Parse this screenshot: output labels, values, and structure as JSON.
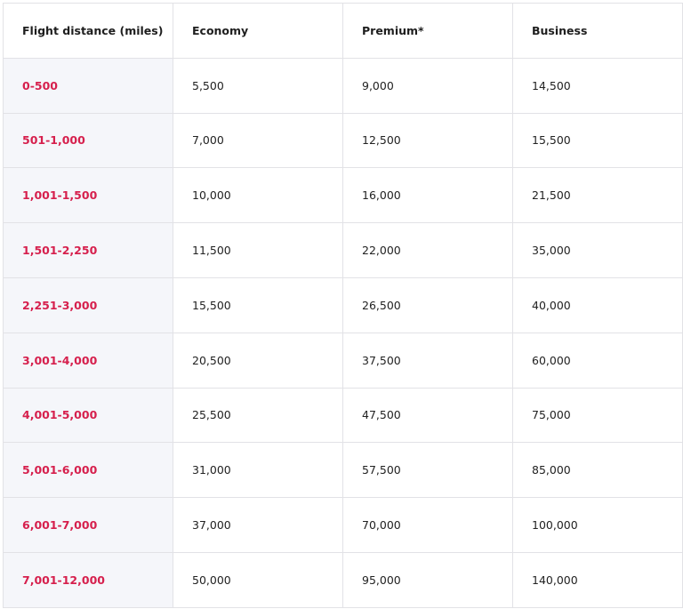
{
  "table": {
    "headers": [
      "Flight distance (miles)",
      "Economy",
      "Premium*",
      "Business"
    ],
    "rows": [
      [
        "0-500",
        "5,500",
        "9,000",
        "14,500"
      ],
      [
        "501-1,000",
        "7,000",
        "12,500",
        "15,500"
      ],
      [
        "1,001-1,500",
        "10,000",
        "16,000",
        "21,500"
      ],
      [
        "1,501-2,250",
        "11,500",
        "22,000",
        "35,000"
      ],
      [
        "2,251-3,000",
        "15,500",
        "26,500",
        "40,000"
      ],
      [
        "3,001-4,000",
        "20,500",
        "37,500",
        "60,000"
      ],
      [
        "4,001-5,000",
        "25,500",
        "47,500",
        "75,000"
      ],
      [
        "5,001-6,000",
        "31,000",
        "57,500",
        "85,000"
      ],
      [
        "6,001-7,000",
        "37,000",
        "70,000",
        "100,000"
      ],
      [
        "7,001-12,000",
        "50,000",
        "95,000",
        "140,000"
      ]
    ]
  },
  "colors": {
    "distance_text": "#d6204d",
    "distance_bg": "#f5f6fa",
    "border": "#e2e2e6"
  }
}
